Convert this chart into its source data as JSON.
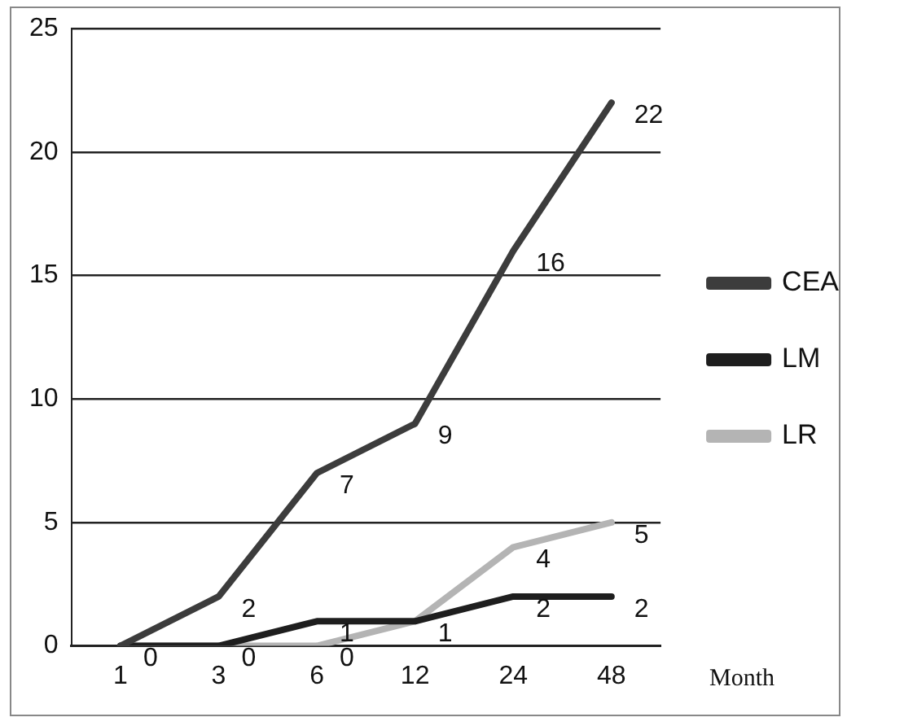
{
  "chart_data": {
    "type": "line",
    "xlabel": "Month",
    "categories": [
      "1",
      "3",
      "6",
      "12",
      "24",
      "48"
    ],
    "series": [
      {
        "name": "CEA",
        "color": "#3c3c3c",
        "values": [
          0,
          2,
          7,
          9,
          16,
          22
        ],
        "value_labels": [
          "0",
          "2",
          "7",
          "9",
          "16",
          "22"
        ]
      },
      {
        "name": "LM",
        "color": "#1e1e1e",
        "values": [
          0,
          0,
          1,
          1,
          2,
          2
        ],
        "value_labels": [
          null,
          "0",
          "1",
          "1",
          "2",
          "2"
        ]
      },
      {
        "name": "LR",
        "color": "#b4b4b4",
        "values": [
          0,
          0,
          0,
          1,
          4,
          5
        ],
        "value_labels": [
          null,
          null,
          "0",
          null,
          "4",
          "5"
        ]
      }
    ],
    "ylim": [
      0,
      25
    ],
    "yticks": [
      0,
      5,
      10,
      15,
      20,
      25
    ],
    "grid": "y",
    "legend": "right",
    "marker": "none"
  }
}
